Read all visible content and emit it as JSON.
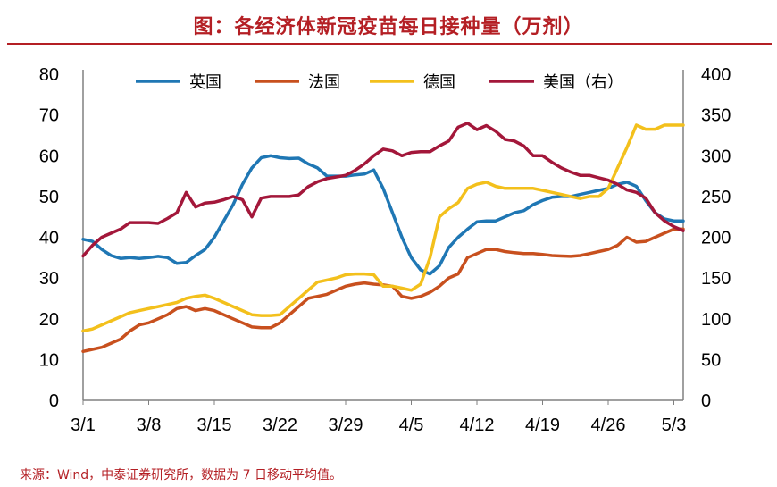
{
  "title": "图：各经济体新冠疫苗每日接种量（万剂）",
  "source": "来源：Wind，中泰证券研究所，数据为 7 日移动平均值。",
  "chart_data": {
    "type": "line",
    "title": "图：各经济体新冠疫苗每日接种量（万剂）",
    "x_ticks": [
      "3/1",
      "3/8",
      "3/15",
      "3/22",
      "3/29",
      "4/5",
      "4/12",
      "4/19",
      "4/26",
      "5/3"
    ],
    "y_left": {
      "range": [
        0,
        80
      ],
      "ticks": [
        "0",
        "10",
        "20",
        "30",
        "40",
        "50",
        "60",
        "70",
        "80"
      ]
    },
    "y_right": {
      "range": [
        0,
        400
      ],
      "ticks": [
        "0",
        "50",
        "100",
        "150",
        "200",
        "250",
        "300",
        "350",
        "400"
      ]
    },
    "legend_position": "top",
    "series": [
      {
        "name": "英国",
        "axis": "left",
        "color": "#1f77b4",
        "points": [
          [
            0,
            39.5
          ],
          [
            1,
            39
          ],
          [
            2,
            37
          ],
          [
            3,
            35.5
          ],
          [
            4,
            34.8
          ],
          [
            5,
            35
          ],
          [
            6,
            34.8
          ],
          [
            7,
            35
          ],
          [
            8,
            35.3
          ],
          [
            9,
            35
          ],
          [
            10,
            33.6
          ],
          [
            11,
            33.8
          ],
          [
            12,
            35.5
          ],
          [
            13,
            37
          ],
          [
            14,
            40
          ],
          [
            15,
            44
          ],
          [
            16,
            48
          ],
          [
            17,
            53
          ],
          [
            18,
            57
          ],
          [
            19,
            59.5
          ],
          [
            20,
            60
          ],
          [
            21,
            59.5
          ],
          [
            22,
            59.3
          ],
          [
            23,
            59.4
          ],
          [
            24,
            58
          ],
          [
            25,
            57
          ],
          [
            26,
            55
          ],
          [
            27,
            55
          ],
          [
            28,
            55
          ],
          [
            29,
            55.3
          ],
          [
            30,
            55.5
          ],
          [
            31,
            56.5
          ],
          [
            32,
            52
          ],
          [
            33,
            46
          ],
          [
            34,
            40
          ],
          [
            35,
            35
          ],
          [
            36,
            32
          ],
          [
            37,
            31
          ],
          [
            38,
            33
          ],
          [
            39,
            37.5
          ],
          [
            40,
            40
          ],
          [
            41,
            42
          ],
          [
            42,
            43.8
          ],
          [
            43,
            44
          ],
          [
            44,
            44
          ],
          [
            45,
            45
          ],
          [
            46,
            46
          ],
          [
            47,
            46.5
          ],
          [
            48,
            48
          ],
          [
            49,
            49
          ],
          [
            50,
            49.8
          ],
          [
            51,
            50
          ],
          [
            52,
            50
          ],
          [
            53,
            50.5
          ],
          [
            54,
            51
          ],
          [
            55,
            51.5
          ],
          [
            56,
            52
          ],
          [
            57,
            53
          ],
          [
            58,
            53.5
          ],
          [
            59,
            52.5
          ],
          [
            60,
            49
          ],
          [
            61,
            46
          ],
          [
            62,
            44.5
          ],
          [
            63,
            44
          ],
          [
            64,
            44
          ]
        ]
      },
      {
        "name": "法国",
        "axis": "left",
        "color": "#c8501e",
        "points": [
          [
            0,
            12
          ],
          [
            1,
            12.5
          ],
          [
            2,
            13
          ],
          [
            3,
            14
          ],
          [
            4,
            15
          ],
          [
            5,
            17
          ],
          [
            6,
            18.5
          ],
          [
            7,
            19
          ],
          [
            8,
            20
          ],
          [
            9,
            21
          ],
          [
            10,
            22.5
          ],
          [
            11,
            23
          ],
          [
            12,
            22
          ],
          [
            13,
            22.5
          ],
          [
            14,
            22
          ],
          [
            15,
            21
          ],
          [
            16,
            20
          ],
          [
            17,
            19
          ],
          [
            18,
            18
          ],
          [
            19,
            17.8
          ],
          [
            20,
            17.8
          ],
          [
            21,
            19
          ],
          [
            22,
            21
          ],
          [
            23,
            23
          ],
          [
            24,
            25
          ],
          [
            25,
            25.5
          ],
          [
            26,
            26
          ],
          [
            27,
            27
          ],
          [
            28,
            28
          ],
          [
            29,
            28.5
          ],
          [
            30,
            28.8
          ],
          [
            31,
            28.5
          ],
          [
            32,
            28.3
          ],
          [
            33,
            28
          ],
          [
            34,
            25.5
          ],
          [
            35,
            25
          ],
          [
            36,
            25.5
          ],
          [
            37,
            26.5
          ],
          [
            38,
            28
          ],
          [
            39,
            30
          ],
          [
            40,
            31
          ],
          [
            41,
            35
          ],
          [
            42,
            36
          ],
          [
            43,
            37
          ],
          [
            44,
            37
          ],
          [
            45,
            36.5
          ],
          [
            46,
            36.2
          ],
          [
            47,
            36
          ],
          [
            48,
            36
          ],
          [
            49,
            35.8
          ],
          [
            50,
            35.5
          ],
          [
            51,
            35.4
          ],
          [
            52,
            35.3
          ],
          [
            53,
            35.5
          ],
          [
            54,
            36
          ],
          [
            55,
            36.5
          ],
          [
            56,
            37
          ],
          [
            57,
            38
          ],
          [
            58,
            40
          ],
          [
            59,
            38.8
          ],
          [
            60,
            39
          ],
          [
            61,
            40
          ],
          [
            62,
            41
          ],
          [
            63,
            42
          ],
          [
            64,
            42
          ]
        ]
      },
      {
        "name": "德国",
        "axis": "left",
        "color": "#f3c01c",
        "points": [
          [
            0,
            17
          ],
          [
            1,
            17.5
          ],
          [
            2,
            18.5
          ],
          [
            3,
            19.5
          ],
          [
            4,
            20.5
          ],
          [
            5,
            21.5
          ],
          [
            6,
            22
          ],
          [
            7,
            22.5
          ],
          [
            8,
            23
          ],
          [
            9,
            23.5
          ],
          [
            10,
            24
          ],
          [
            11,
            25
          ],
          [
            12,
            25.5
          ],
          [
            13,
            25.8
          ],
          [
            14,
            25
          ],
          [
            15,
            24
          ],
          [
            16,
            23
          ],
          [
            17,
            22
          ],
          [
            18,
            21
          ],
          [
            19,
            20.8
          ],
          [
            20,
            20.8
          ],
          [
            21,
            21
          ],
          [
            22,
            23
          ],
          [
            23,
            25
          ],
          [
            24,
            27
          ],
          [
            25,
            29
          ],
          [
            26,
            29.5
          ],
          [
            27,
            30
          ],
          [
            28,
            30.8
          ],
          [
            29,
            31
          ],
          [
            30,
            31
          ],
          [
            31,
            30.8
          ],
          [
            32,
            28
          ],
          [
            33,
            28
          ],
          [
            34,
            27.5
          ],
          [
            35,
            27
          ],
          [
            36,
            28.5
          ],
          [
            37,
            35
          ],
          [
            38,
            45
          ],
          [
            39,
            47
          ],
          [
            40,
            48.5
          ],
          [
            41,
            52
          ],
          [
            42,
            53
          ],
          [
            43,
            53.5
          ],
          [
            44,
            52.5
          ],
          [
            45,
            52
          ],
          [
            46,
            52
          ],
          [
            47,
            52
          ],
          [
            48,
            52
          ],
          [
            49,
            51.5
          ],
          [
            50,
            51
          ],
          [
            51,
            50.5
          ],
          [
            52,
            50
          ],
          [
            53,
            49.5
          ],
          [
            54,
            50
          ],
          [
            55,
            50
          ],
          [
            56,
            52
          ],
          [
            57,
            57
          ],
          [
            58,
            62
          ],
          [
            59,
            67.5
          ],
          [
            60,
            66.5
          ],
          [
            61,
            66.5
          ],
          [
            62,
            67.5
          ],
          [
            63,
            67.5
          ],
          [
            64,
            67.5
          ]
        ]
      },
      {
        "name": "美国（右）",
        "axis": "right",
        "color": "#a3173a",
        "points": [
          [
            0,
            177
          ],
          [
            1,
            190
          ],
          [
            2,
            200
          ],
          [
            3,
            205
          ],
          [
            4,
            210
          ],
          [
            5,
            218
          ],
          [
            6,
            218
          ],
          [
            7,
            218
          ],
          [
            8,
            217
          ],
          [
            9,
            223
          ],
          [
            10,
            230
          ],
          [
            11,
            255
          ],
          [
            12,
            237
          ],
          [
            13,
            242
          ],
          [
            14,
            243
          ],
          [
            15,
            246
          ],
          [
            16,
            250
          ],
          [
            17,
            246
          ],
          [
            18,
            225
          ],
          [
            19,
            248
          ],
          [
            20,
            250
          ],
          [
            21,
            250
          ],
          [
            22,
            250
          ],
          [
            23,
            252
          ],
          [
            24,
            262
          ],
          [
            25,
            268
          ],
          [
            26,
            272
          ],
          [
            27,
            274
          ],
          [
            28,
            276
          ],
          [
            29,
            282
          ],
          [
            30,
            290
          ],
          [
            31,
            300
          ],
          [
            32,
            308
          ],
          [
            33,
            306
          ],
          [
            34,
            300
          ],
          [
            35,
            304
          ],
          [
            36,
            305
          ],
          [
            37,
            305
          ],
          [
            38,
            312
          ],
          [
            39,
            318
          ],
          [
            40,
            335
          ],
          [
            41,
            340
          ],
          [
            42,
            332
          ],
          [
            43,
            337
          ],
          [
            44,
            330
          ],
          [
            45,
            320
          ],
          [
            46,
            318
          ],
          [
            47,
            312
          ],
          [
            48,
            300
          ],
          [
            49,
            300
          ],
          [
            50,
            292
          ],
          [
            51,
            285
          ],
          [
            52,
            280
          ],
          [
            53,
            276
          ],
          [
            54,
            276
          ],
          [
            55,
            273
          ],
          [
            56,
            270
          ],
          [
            57,
            265
          ],
          [
            58,
            258
          ],
          [
            59,
            255
          ],
          [
            60,
            248
          ],
          [
            61,
            230
          ],
          [
            62,
            220
          ],
          [
            63,
            213
          ],
          [
            64,
            208
          ]
        ]
      }
    ]
  }
}
